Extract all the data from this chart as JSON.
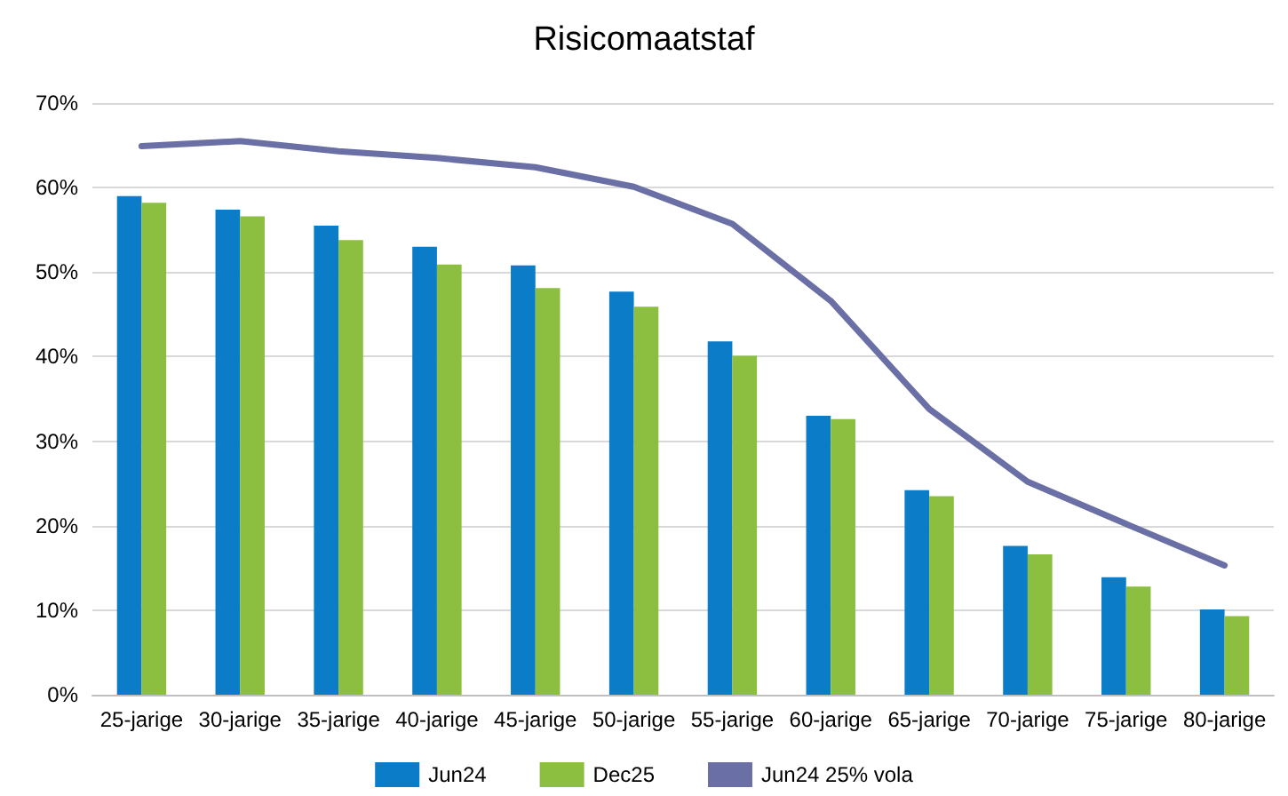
{
  "chart_data": {
    "type": "bar",
    "title": "Risicomaatstaf",
    "categories": [
      "25-jarige",
      "30-jarige",
      "35-jarige",
      "40-jarige",
      "45-jarige",
      "50-jarige",
      "55-jarige",
      "60-jarige",
      "65-jarige",
      "70-jarige",
      "75-jarige",
      "80-jarige"
    ],
    "series": [
      {
        "name": "Jun24",
        "color": "#0a7cc8",
        "values": [
          59,
          57.4,
          55.5,
          53,
          50.8,
          47.7,
          41.8,
          33,
          24.2,
          17.6,
          13.9,
          10.1
        ]
      },
      {
        "name": "Dec25",
        "color": "#8cbf3f",
        "values": [
          58.2,
          56.6,
          53.8,
          50.9,
          48.1,
          45.9,
          40.1,
          32.6,
          23.5,
          16.6,
          12.8,
          9.3
        ]
      },
      {
        "name": "Jun24 25% vola",
        "type": "line",
        "color": "#6a6fa5",
        "values": [
          64.9,
          65.5,
          64.3,
          63.5,
          62.4,
          60.1,
          55.7,
          46.6,
          33.8,
          25.2,
          20.2,
          15.3
        ]
      }
    ],
    "ylim": [
      0,
      70
    ],
    "yticks": [
      {
        "value": 0,
        "label": "0%"
      },
      {
        "value": 10,
        "label": "10%"
      },
      {
        "value": 20,
        "label": "20%"
      },
      {
        "value": 30,
        "label": "30%"
      },
      {
        "value": 40,
        "label": "40%"
      },
      {
        "value": 50,
        "label": "50%"
      },
      {
        "value": 60,
        "label": "60%"
      },
      {
        "value": 70,
        "label": "70%"
      }
    ],
    "grid": "y",
    "legend": "bottom",
    "marker": "none",
    "line_style": "solid"
  }
}
